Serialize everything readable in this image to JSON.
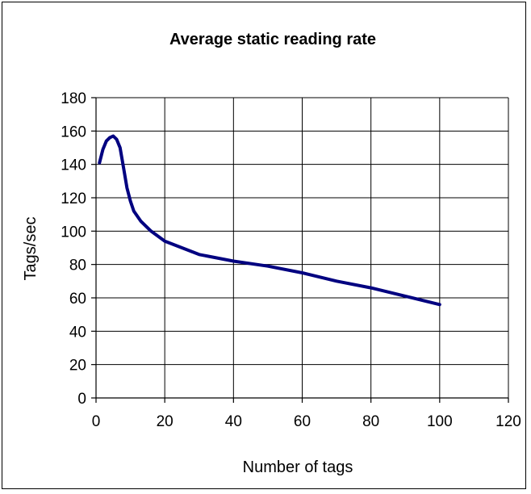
{
  "chart_data": {
    "type": "line",
    "title": "Average static reading rate",
    "xlabel": "Number of tags",
    "ylabel": "Tags/sec",
    "xlim": [
      0,
      120
    ],
    "ylim": [
      0,
      180
    ],
    "x_ticks": [
      0,
      20,
      40,
      60,
      80,
      100,
      120
    ],
    "y_ticks": [
      0,
      20,
      40,
      60,
      80,
      100,
      120,
      140,
      160,
      180
    ],
    "grid": true,
    "legend": "none",
    "series": [
      {
        "color": "#000080",
        "x": [
          1,
          2,
          3,
          4,
          5,
          6,
          7,
          8,
          9,
          10,
          11,
          13,
          16,
          20,
          25,
          30,
          40,
          50,
          60,
          70,
          80,
          90,
          100
        ],
        "y": [
          141,
          149,
          154,
          156,
          157,
          155,
          150,
          138,
          126,
          118,
          112,
          106,
          100,
          94,
          90,
          86,
          82,
          79,
          75,
          70,
          66,
          61,
          56
        ]
      }
    ]
  }
}
